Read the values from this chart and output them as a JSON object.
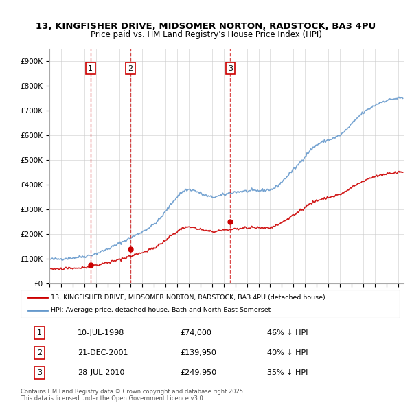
{
  "title_line1": "13, KINGFISHER DRIVE, MIDSOMER NORTON, RADSTOCK, BA3 4PU",
  "title_line2": "Price paid vs. HM Land Registry's House Price Index (HPI)",
  "purchases": [
    {
      "label": "1",
      "date_num": 1998.53,
      "price": 74000,
      "note": "10-JUL-1998",
      "pct": "46% ↓ HPI"
    },
    {
      "label": "2",
      "date_num": 2001.97,
      "price": 139950,
      "note": "21-DEC-2001",
      "pct": "40% ↓ HPI"
    },
    {
      "label": "3",
      "date_num": 2010.57,
      "price": 249950,
      "note": "28-JUL-2010",
      "pct": "35% ↓ HPI"
    }
  ],
  "legend_entry1": "13, KINGFISHER DRIVE, MIDSOMER NORTON, RADSTOCK, BA3 4PU (detached house)",
  "legend_entry2": "HPI: Average price, detached house, Bath and North East Somerset",
  "footer": "Contains HM Land Registry data © Crown copyright and database right 2025.\nThis data is licensed under the Open Government Licence v3.0.",
  "ylim": [
    0,
    950000
  ],
  "xlim_start": 1995.0,
  "xlim_end": 2025.5,
  "price_color": "#cc0000",
  "hpi_color": "#6699cc",
  "background_color": "#ffffff",
  "grid_color": "#cccccc"
}
